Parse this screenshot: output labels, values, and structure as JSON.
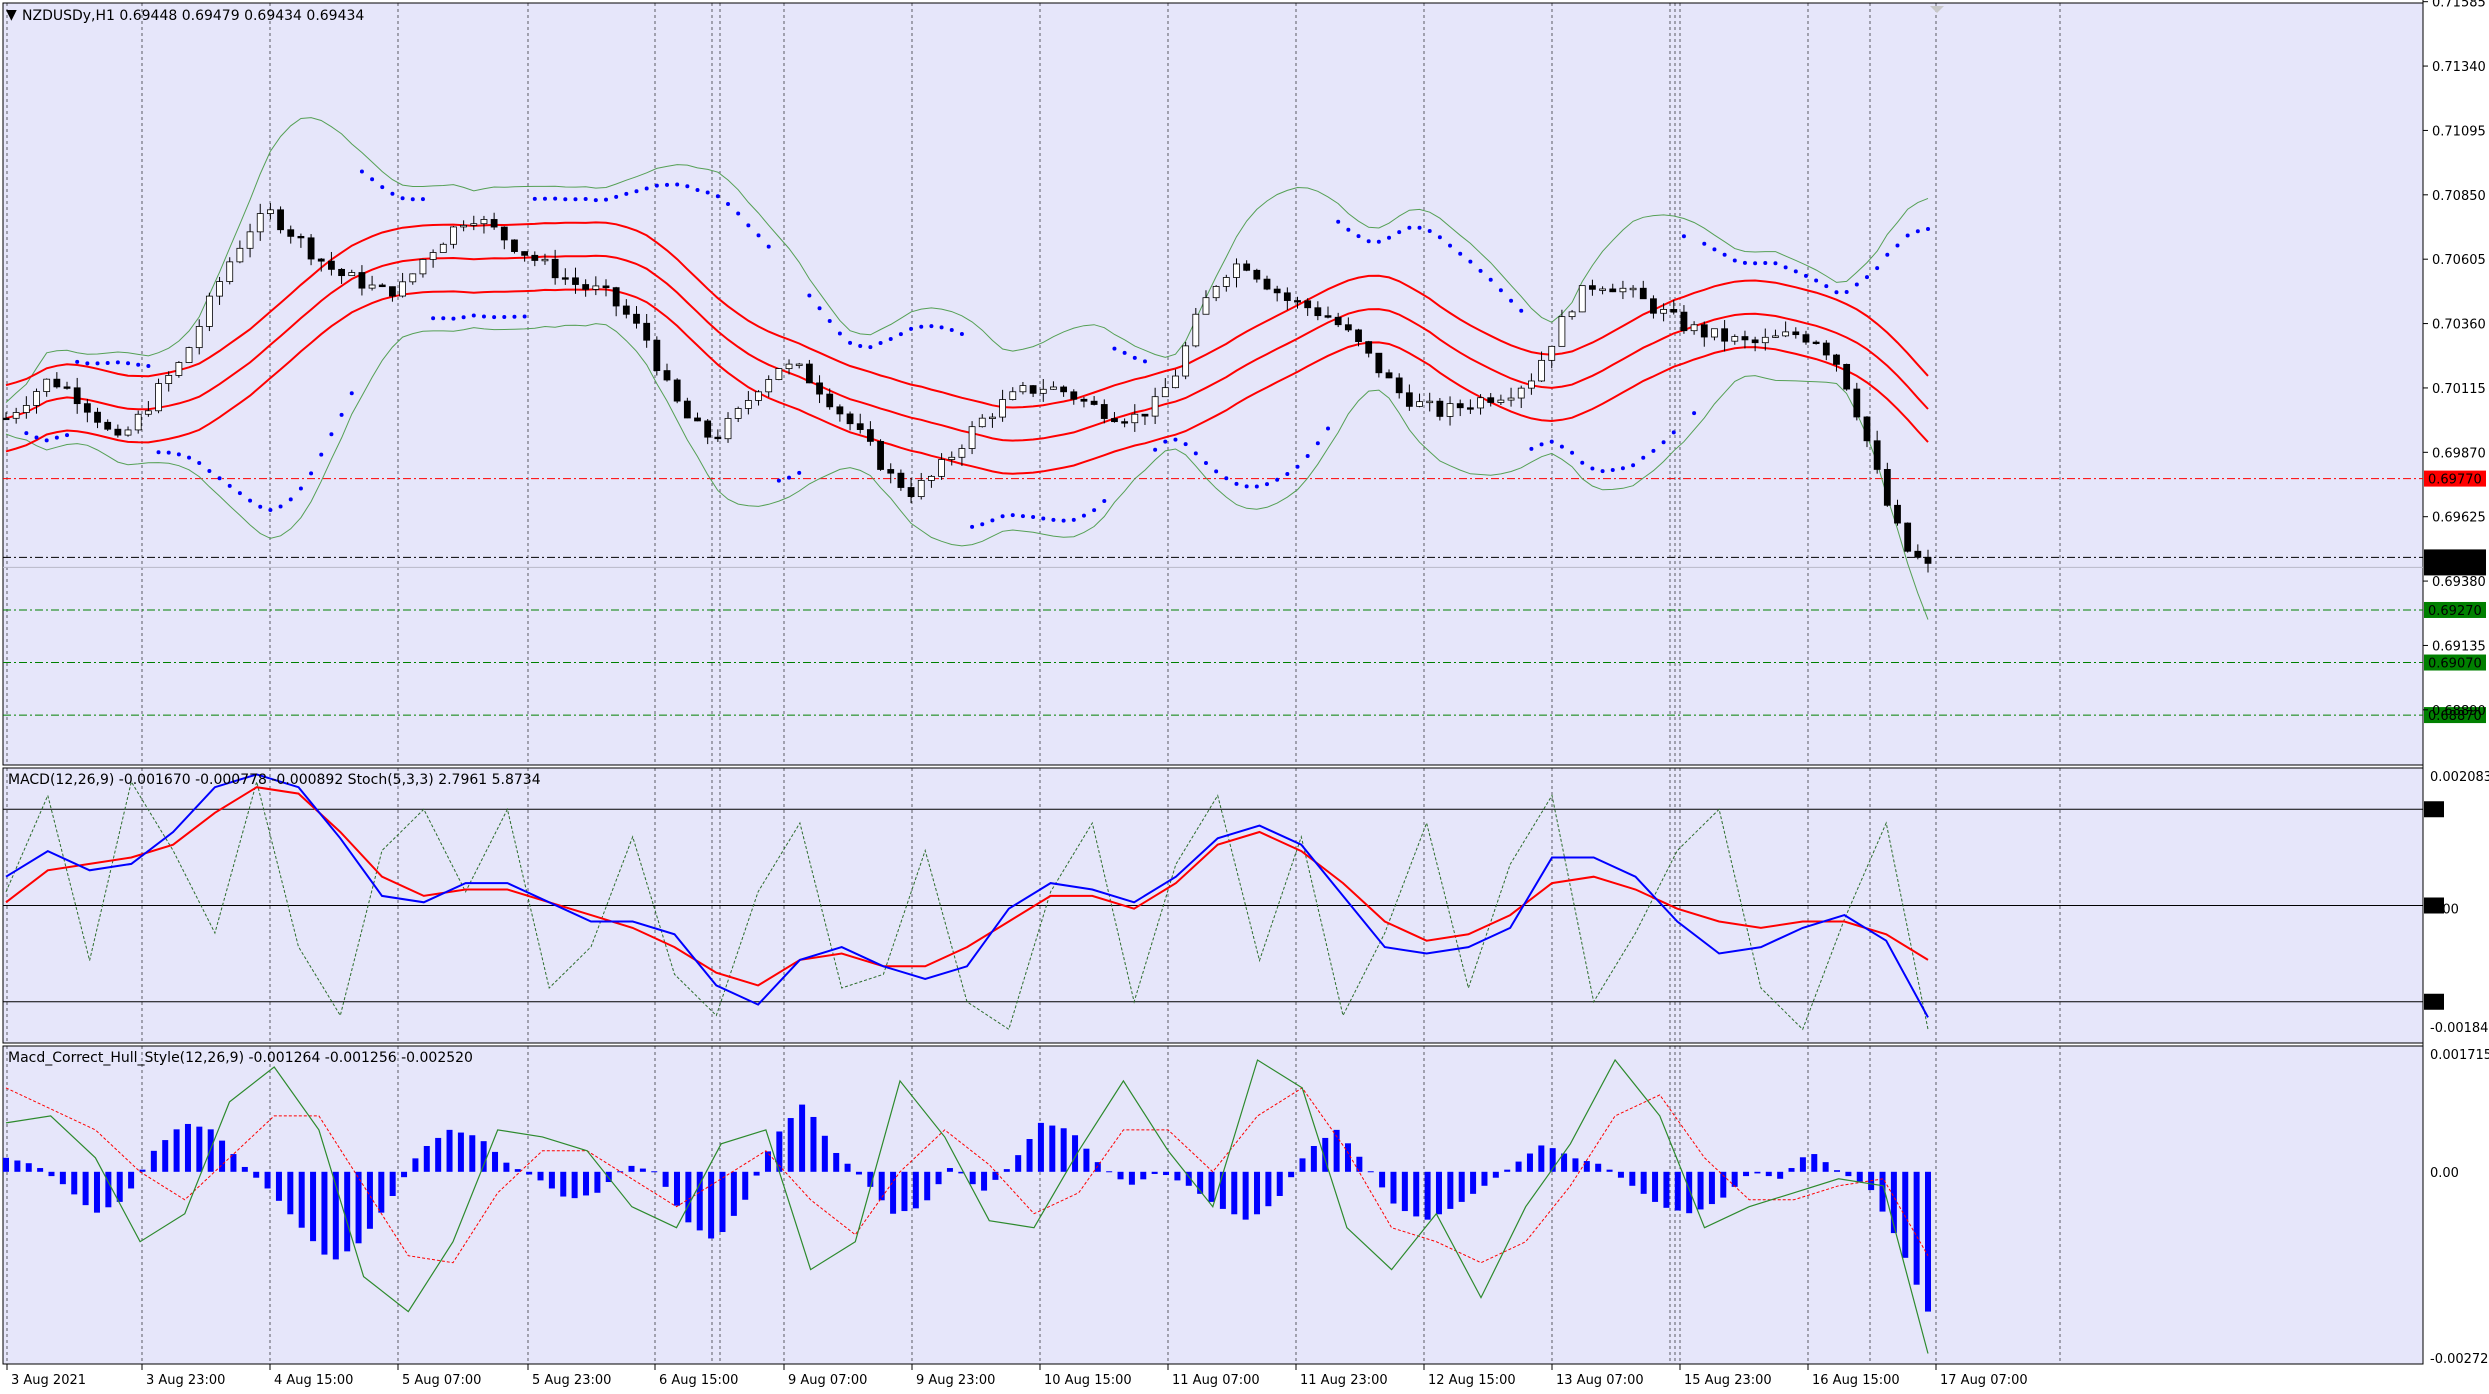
{
  "chart_data": [
    {
      "type": "candlestick",
      "panel": "main",
      "header": "NZDUSDy,H1  0.69448 0.69479 0.69434 0.69434",
      "ylim": [
        0.6868,
        0.7158
      ],
      "y_ticks": [
        "0.71585",
        "0.71340",
        "0.71095",
        "0.70850",
        "0.70605",
        "0.70360",
        "0.70115",
        "0.69870",
        "0.69625",
        "0.69380",
        "0.69135",
        "0.68890"
      ],
      "x_ticks": [
        "3 Aug 2021",
        "3 Aug 23:00",
        "4 Aug 15:00",
        "5 Aug 07:00",
        "5 Aug 23:00",
        "6 Aug 15:00",
        "9 Aug 07:00",
        "9 Aug 23:00",
        "10 Aug 15:00",
        "11 Aug 07:00",
        "11 Aug 23:00",
        "12 Aug 15:00",
        "13 Aug 07:00",
        "15 Aug 23:00",
        "16 Aug 15:00",
        "17 Aug 07:00"
      ],
      "close_path": [
        0.7,
        0.7008,
        0.7015,
        0.701,
        0.7002,
        0.699,
        0.7,
        0.7012,
        0.7022,
        0.704,
        0.7058,
        0.7072,
        0.7078,
        0.707,
        0.7062,
        0.7055,
        0.7052,
        0.7048,
        0.705,
        0.7062,
        0.707,
        0.7078,
        0.7072,
        0.7066,
        0.706,
        0.7055,
        0.705,
        0.7048,
        0.704,
        0.703,
        0.701,
        0.6998,
        0.6992,
        0.7,
        0.7012,
        0.702,
        0.7018,
        0.701,
        0.7,
        0.699,
        0.6978,
        0.6972,
        0.6978,
        0.6988,
        0.6998,
        0.7005,
        0.701,
        0.7012,
        0.701,
        0.7005,
        0.7002,
        0.7,
        0.7005,
        0.7018,
        0.704,
        0.7055,
        0.706,
        0.7052,
        0.7045,
        0.7042,
        0.7038,
        0.703,
        0.702,
        0.701,
        0.7005,
        0.7002,
        0.7005,
        0.7008,
        0.701,
        0.7015,
        0.703,
        0.7045,
        0.7052,
        0.705,
        0.7045,
        0.704,
        0.7035,
        0.7032,
        0.703,
        0.7028,
        0.703,
        0.7032,
        0.703,
        0.702,
        0.6998,
        0.697,
        0.695,
        0.6943
      ],
      "range_path": [
        0.6975,
        0.7162
      ],
      "current_price": "0.69470",
      "ask_price": "0.69434",
      "levels": [
        {
          "value": "0.69770",
          "color": "#ff0000"
        },
        {
          "value": "0.69270",
          "color": "#008000"
        },
        {
          "value": "0.69070",
          "color": "#008000"
        },
        {
          "value": "0.68870",
          "color": "#008000"
        }
      ],
      "overlays": [
        "Bollinger Bands (green)",
        "Envelopes (red)",
        "Parabolic SAR (blue dots)"
      ],
      "colors": {
        "background": "#e6e6fa",
        "up": "#ffffff",
        "down": "#000000",
        "bollinger": "#55a055",
        "envelope": "#ff0000",
        "sar": "#0000ff"
      }
    },
    {
      "type": "line",
      "panel": "indicator-1",
      "header": "MACD(12,26,9) -0.001670 -0.000778 -0.000892  Stoch(5,3,3) 2.7961 5.8734",
      "ylim": [
        -0.0021,
        0.0022
      ],
      "y_ticks": [
        "0.002083",
        "0.00",
        "-0.001849"
      ],
      "stoch_levels": [
        "85",
        "50",
        "15"
      ],
      "series": [
        {
          "name": "MACD",
          "color": "#0000ff",
          "values": [
            0.0005,
            0.0009,
            0.0006,
            0.0007,
            0.0012,
            0.0019,
            0.0021,
            0.0019,
            0.0011,
            0.0002,
            0.0001,
            0.0004,
            0.0004,
            0.0001,
            -0.0002,
            -0.0002,
            -0.0004,
            -0.0012,
            -0.0015,
            -0.0008,
            -0.0006,
            -0.0009,
            -0.0011,
            -0.0009,
            0.0,
            0.0004,
            0.0003,
            0.0001,
            0.0005,
            0.0011,
            0.0013,
            0.001,
            0.0002,
            -0.0006,
            -0.0007,
            -0.0006,
            -0.0003,
            0.0008,
            0.0008,
            0.0005,
            -0.0002,
            -0.0007,
            -0.0006,
            -0.0003,
            -0.0001,
            -0.0005,
            -0.0017
          ]
        },
        {
          "name": "Signal",
          "color": "#ff0000",
          "values": [
            0.0001,
            0.0006,
            0.0007,
            0.0008,
            0.001,
            0.0015,
            0.0019,
            0.0018,
            0.0012,
            0.0005,
            0.0002,
            0.0003,
            0.0003,
            0.0001,
            -0.0001,
            -0.0003,
            -0.0006,
            -0.001,
            -0.0012,
            -0.0008,
            -0.0007,
            -0.0009,
            -0.0009,
            -0.0006,
            -0.0002,
            0.0002,
            0.0002,
            0.0,
            0.0004,
            0.001,
            0.0012,
            0.0009,
            0.0004,
            -0.0002,
            -0.0005,
            -0.0004,
            -0.0001,
            0.0004,
            0.0005,
            0.0003,
            0.0,
            -0.0002,
            -0.0003,
            -0.0002,
            -0.0002,
            -0.0004,
            -0.0008
          ]
        },
        {
          "name": "Stoch",
          "color": "#2d6d2d",
          "values": [
            0.55,
            0.9,
            0.3,
            0.95,
            0.7,
            0.4,
            0.95,
            0.35,
            0.1,
            0.7,
            0.85,
            0.55,
            0.85,
            0.2,
            0.35,
            0.75,
            0.25,
            0.1,
            0.55,
            0.8,
            0.2,
            0.25,
            0.7,
            0.15,
            0.05,
            0.55,
            0.8,
            0.15,
            0.65,
            0.9,
            0.3,
            0.75,
            0.1,
            0.4,
            0.8,
            0.2,
            0.65,
            0.9,
            0.15,
            0.4,
            0.7,
            0.85,
            0.2,
            0.05,
            0.45,
            0.8,
            0.05
          ]
        }
      ]
    },
    {
      "type": "bar",
      "panel": "indicator-2",
      "header": "Macd_Correct_Hull_Style(12,26,9) -0.001264 -0.001256 -0.002520",
      "ylim": [
        -0.00275,
        0.0018
      ],
      "y_ticks": [
        "0.001715",
        "0.00",
        "-0.002721"
      ],
      "histogram": [
        0.0002,
        0.0001,
        -0.0002,
        -0.0006,
        -0.0004,
        0.0003,
        0.0007,
        0.0006,
        0.0001,
        -0.0003,
        -0.0008,
        -0.0013,
        -0.001,
        -0.0004,
        0.0003,
        0.0006,
        0.0005,
        0.0001,
        -0.0001,
        -0.0004,
        -0.0003,
        0.0001,
        0.0,
        -0.0007,
        -0.001,
        -0.0004,
        0.0005,
        0.001,
        0.0003,
        -0.0001,
        -0.0006,
        -0.0005,
        0.0001,
        -0.0003,
        0.0001,
        0.0007,
        0.0006,
        0.0001,
        -0.0002,
        0.0,
        -0.0002,
        -0.0005,
        -0.0007,
        -0.0004,
        0.0003,
        0.0006,
        0.0001,
        -0.0005,
        -0.0007,
        -0.0005,
        -0.0002,
        0.0001,
        0.0004,
        0.0002,
        0.0001,
        -0.0002,
        -0.0005,
        -0.0006,
        -0.0004,
        0.0,
        -0.0001,
        0.0003,
        0.0,
        -0.0002,
        -0.001,
        -0.002
      ],
      "series": [
        {
          "name": "Main",
          "color": "#2d8a2d",
          "values": [
            0.0007,
            0.0008,
            0.0002,
            -0.001,
            -0.0006,
            0.001,
            0.0015,
            0.0006,
            -0.0015,
            -0.002,
            -0.001,
            0.0006,
            0.0005,
            0.0003,
            -0.0005,
            -0.0008,
            0.0004,
            0.0006,
            -0.0014,
            -0.001,
            0.0013,
            0.0005,
            -0.0007,
            -0.0008,
            0.0003,
            0.0013,
            0.0003,
            -0.0005,
            0.0016,
            0.0012,
            -0.0008,
            -0.0014,
            -0.0006,
            -0.0018,
            -0.0005,
            0.0004,
            0.0016,
            0.0008,
            -0.0008,
            -0.0005,
            -0.0003,
            -0.0001,
            -0.0002,
            -0.0026
          ]
        },
        {
          "name": "Signal",
          "color": "#ff0000",
          "values": [
            0.0012,
            0.0009,
            0.0006,
            0.0,
            -0.0004,
            0.0002,
            0.0008,
            0.0008,
            -0.0002,
            -0.0012,
            -0.0013,
            -0.0003,
            0.0003,
            0.0003,
            -0.0001,
            -0.0005,
            -0.0001,
            0.0003,
            -0.0004,
            -0.0009,
            0.0,
            0.0006,
            0.0001,
            -0.0006,
            -0.0003,
            0.0006,
            0.0006,
            0.0,
            0.0008,
            0.0012,
            0.0003,
            -0.0008,
            -0.001,
            -0.0013,
            -0.001,
            -0.0002,
            0.0008,
            0.0011,
            0.0002,
            -0.0004,
            -0.0004,
            -0.0002,
            -0.0001,
            -0.0012
          ]
        }
      ]
    }
  ]
}
